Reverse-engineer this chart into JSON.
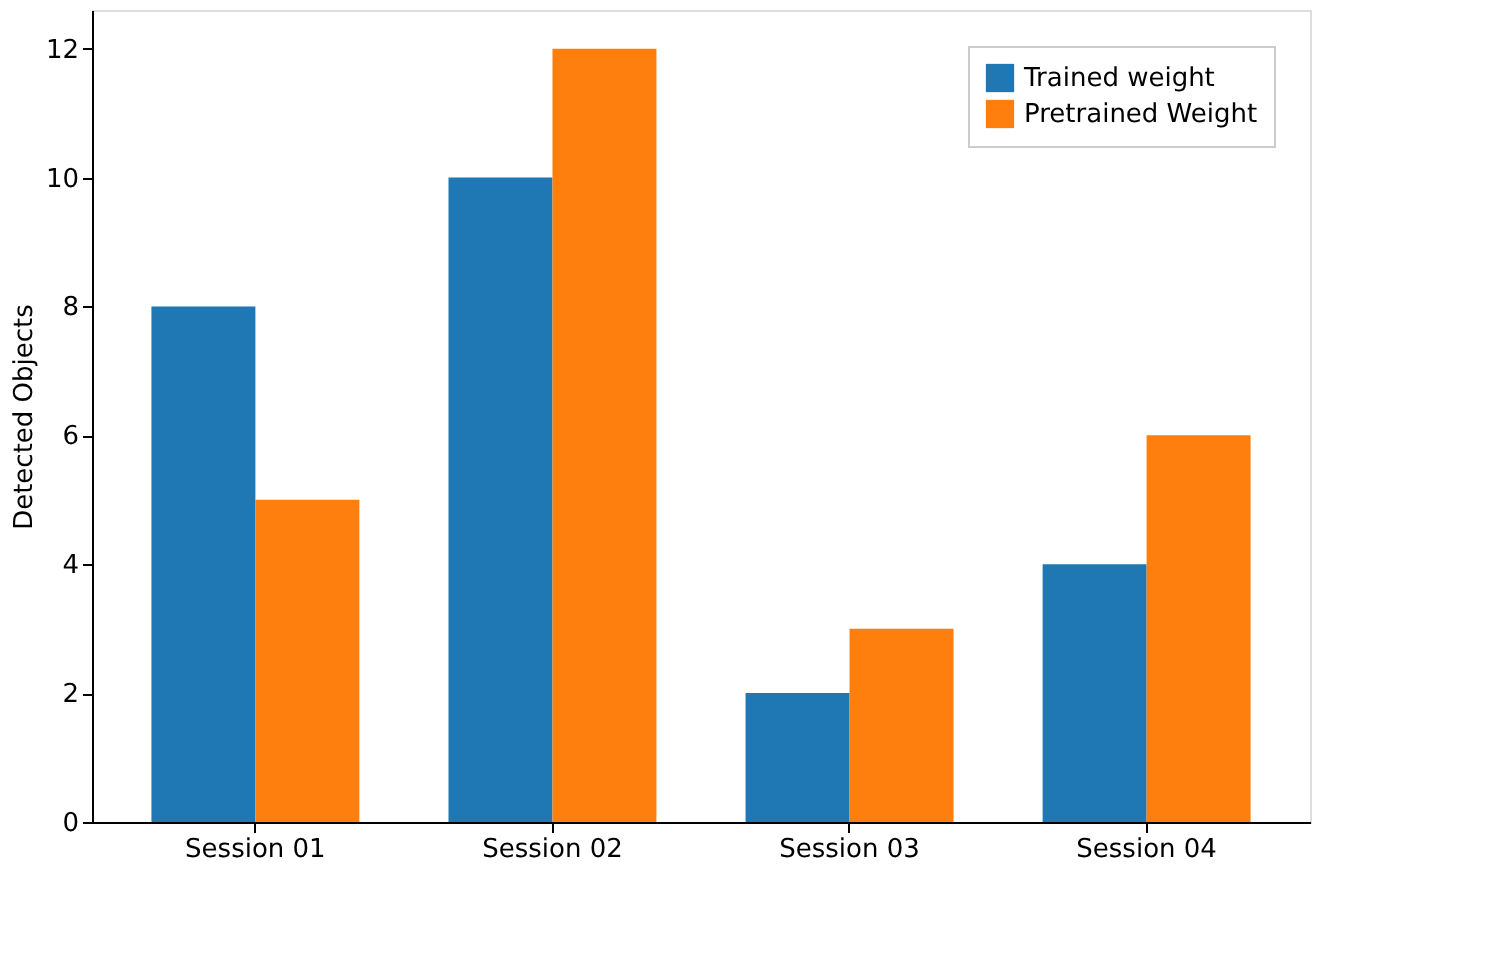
{
  "chart_data": {
    "type": "bar",
    "ylabel": "Detected Objects",
    "categories": [
      "Session 01",
      "Session 02",
      "Session 03",
      "Session 04"
    ],
    "series": [
      {
        "name": "Trained weight",
        "color": "#1f77b4",
        "values": [
          8,
          10,
          2,
          4
        ]
      },
      {
        "name": "Pretrained Weight",
        "color": "#ff7f0e",
        "values": [
          5,
          12,
          3,
          6
        ]
      }
    ],
    "ylim": [
      0,
      12.6
    ],
    "yticks": [
      0,
      2,
      4,
      6,
      8,
      10,
      12
    ],
    "grid": false,
    "legend": "top right"
  }
}
